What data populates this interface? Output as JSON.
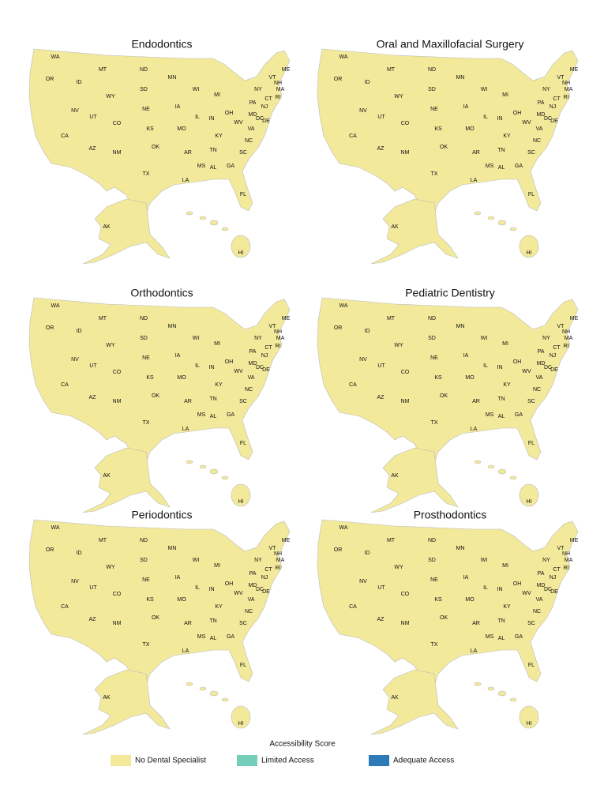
{
  "panels": [
    {
      "title": "Endodontics"
    },
    {
      "title": "Oral and Maxillofacial Surgery"
    },
    {
      "title": "Orthodontics"
    },
    {
      "title": "Pediatric Dentistry"
    },
    {
      "title": "Periodontics"
    },
    {
      "title": "Prosthodontics"
    }
  ],
  "states": [
    "WA",
    "OR",
    "ID",
    "MT",
    "WY",
    "NV",
    "UT",
    "CA",
    "AZ",
    "CO",
    "NM",
    "ND",
    "SD",
    "NE",
    "KS",
    "OK",
    "TX",
    "MN",
    "IA",
    "MO",
    "AR",
    "LA",
    "WI",
    "IL",
    "MS",
    "MI",
    "IN",
    "KY",
    "TN",
    "AL",
    "GA",
    "FL",
    "SC",
    "NC",
    "VA",
    "WV",
    "OH",
    "PA",
    "NY",
    "MD",
    "DE",
    "NJ",
    "CT",
    "RI",
    "MA",
    "VT",
    "NH",
    "ME",
    "DC",
    "AK",
    "HI"
  ],
  "legend": {
    "title": "Accessibility Score",
    "items": [
      {
        "label": "No Dental Specialist",
        "color": "#f3e99b"
      },
      {
        "label": "Limited Access",
        "color": "#74cdb8"
      },
      {
        "label": "Adequate Access",
        "color": "#2c7bb6"
      }
    ]
  }
}
